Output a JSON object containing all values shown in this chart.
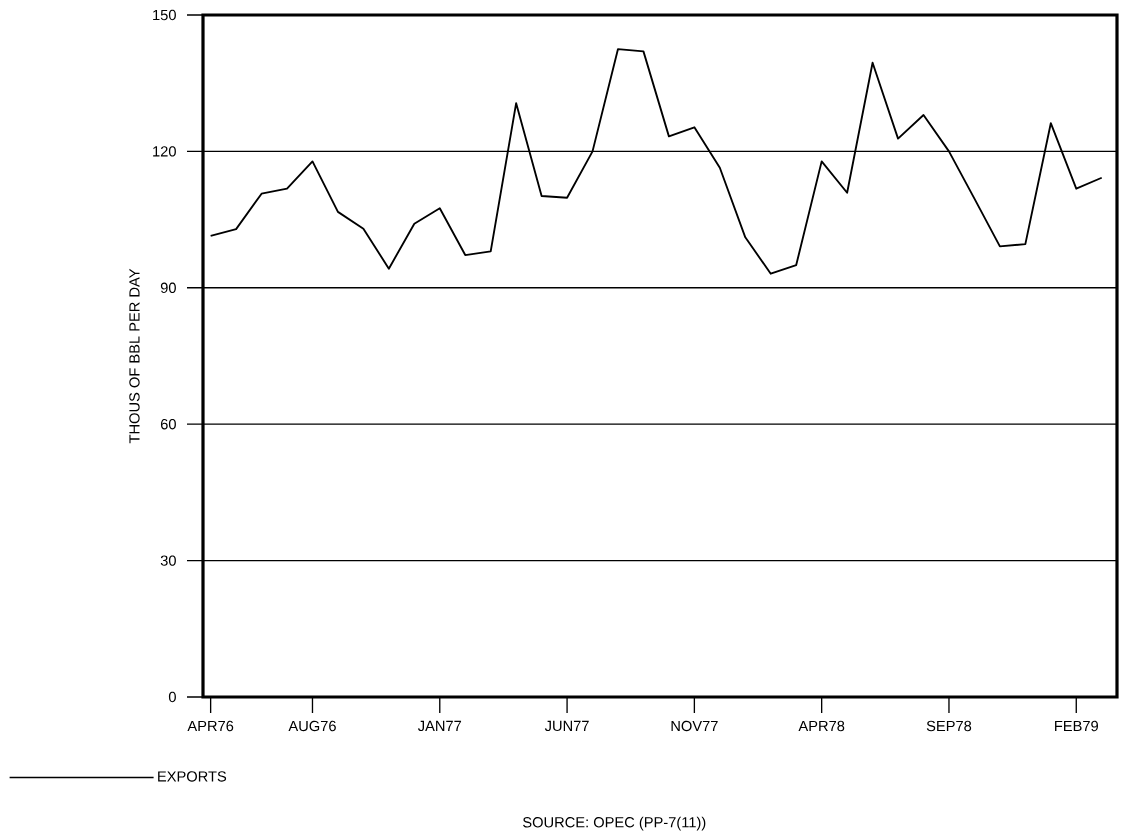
{
  "chart_data": {
    "type": "line",
    "ylabel": "THOUS OF BBL PER DAY",
    "x": [
      "1976-04",
      "1976-05",
      "1976-06",
      "1976-07",
      "1976-08",
      "1976-09",
      "1976-10",
      "1976-11",
      "1976-12",
      "1977-01",
      "1977-02",
      "1977-03",
      "1977-04",
      "1977-05",
      "1977-06",
      "1977-07",
      "1977-08",
      "1977-09",
      "1977-10",
      "1977-11",
      "1977-12",
      "1978-01",
      "1978-02",
      "1978-03",
      "1978-04",
      "1978-05",
      "1978-06",
      "1978-07",
      "1978-08",
      "1978-09",
      "1978-10",
      "1978-11",
      "1978-12",
      "1979-01",
      "1979-02",
      "1979-03"
    ],
    "series": [
      {
        "name": "EXPORTS",
        "color": "#000000",
        "values": [
          101.4,
          102.9,
          110.7,
          111.8,
          117.8,
          106.7,
          103.0,
          94.2,
          104.1,
          107.5,
          97.2,
          98.0,
          130.6,
          110.2,
          109.8,
          120.0,
          142.5,
          142.0,
          123.3,
          125.3,
          116.4,
          101.1,
          93.1,
          95.0,
          117.8,
          110.9,
          139.5,
          122.8,
          128.0,
          120.0,
          109.6,
          99.1,
          99.6,
          126.2,
          111.8,
          114.2
        ]
      }
    ],
    "xlim": [
      "1976-03-22",
      "1979-03-19"
    ],
    "ylim": [
      0,
      150
    ],
    "xticks": [
      {
        "value": "1976-04",
        "label": "APR76"
      },
      {
        "value": "1976-08",
        "label": "AUG76"
      },
      {
        "value": "1977-01",
        "label": "JAN77"
      },
      {
        "value": "1977-06",
        "label": "JUN77"
      },
      {
        "value": "1977-11",
        "label": "NOV77"
      },
      {
        "value": "1978-04",
        "label": "APR78"
      },
      {
        "value": "1978-09",
        "label": "SEP78"
      },
      {
        "value": "1979-02",
        "label": "FEB79"
      }
    ],
    "yticks": [
      0,
      30,
      60,
      90,
      120,
      150
    ],
    "grid": "y",
    "legend": "bottom left",
    "marker": "none",
    "line_style": "solid",
    "annotations": [
      "SOURCE: OPEC (PP-7(11))"
    ]
  }
}
